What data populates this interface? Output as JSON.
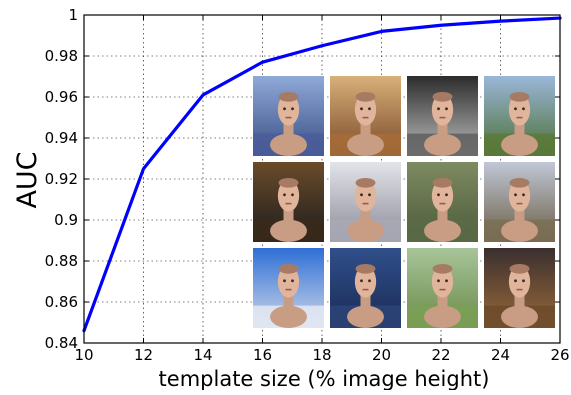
{
  "chart_data": {
    "type": "line",
    "xlabel": "template size (% image height)",
    "ylabel": "AUC",
    "xlim": [
      10,
      26
    ],
    "ylim": [
      0.84,
      1.0
    ],
    "x_ticks": [
      10,
      12,
      14,
      16,
      18,
      20,
      22,
      24,
      26
    ],
    "y_ticks": [
      0.84,
      0.86,
      0.88,
      0.9,
      0.92,
      0.94,
      0.96,
      0.98,
      1.0
    ],
    "x_tick_labels": [
      "10",
      "12",
      "14",
      "16",
      "18",
      "20",
      "22",
      "24",
      "26"
    ],
    "y_tick_labels": [
      "0.84",
      "0.86",
      "0.88",
      "0.9",
      "0.92",
      "0.94",
      "0.96",
      "0.98",
      "1"
    ],
    "grid": true,
    "series": [
      {
        "color": "#0000ff",
        "x": [
          10,
          12,
          14,
          16,
          18,
          20,
          22,
          24,
          26
        ],
        "y": [
          0.846,
          0.925,
          0.961,
          0.977,
          0.985,
          0.992,
          0.995,
          0.997,
          0.9985
        ]
      }
    ]
  },
  "inset": {
    "thumbnails": [
      {
        "bg_top": "#8fa9d8",
        "bg_bottom": "#3a4f86",
        "ground": "#4b5d9a"
      },
      {
        "bg_top": "#d8b07a",
        "bg_bottom": "#7a4a2a",
        "ground": "#a86d3a"
      },
      {
        "bg_top": "#2c2c2c",
        "bg_bottom": "#bdbdbd",
        "ground": "#5e5e5e"
      },
      {
        "bg_top": "#9ab7d9",
        "bg_bottom": "#4d6f35",
        "ground": "#5b7a3a"
      },
      {
        "bg_top": "#6a4b2a",
        "bg_bottom": "#1d1d1d",
        "ground": "#3a2a1a"
      },
      {
        "bg_top": "#e3e3ea",
        "bg_bottom": "#8c8c9a",
        "ground": "#a9a9b6"
      },
      {
        "bg_top": "#7d8b62",
        "bg_bottom": "#4e5a3a",
        "ground": "#5b6b46"
      },
      {
        "bg_top": "#c0c7d6",
        "bg_bottom": "#6b5e45",
        "ground": "#7b6e55"
      },
      {
        "bg_top": "#2f6fd6",
        "bg_bottom": "#cfd8ea",
        "ground": "#e4e9f2"
      },
      {
        "bg_top": "#304f8a",
        "bg_bottom": "#1a2b55",
        "ground": "#2d4478"
      },
      {
        "bg_top": "#a7c59a",
        "bg_bottom": "#6b8a4a",
        "ground": "#7aa055"
      },
      {
        "bg_top": "#3a2f2f",
        "bg_bottom": "#9b6a3a",
        "ground": "#6b4a2a"
      }
    ]
  }
}
